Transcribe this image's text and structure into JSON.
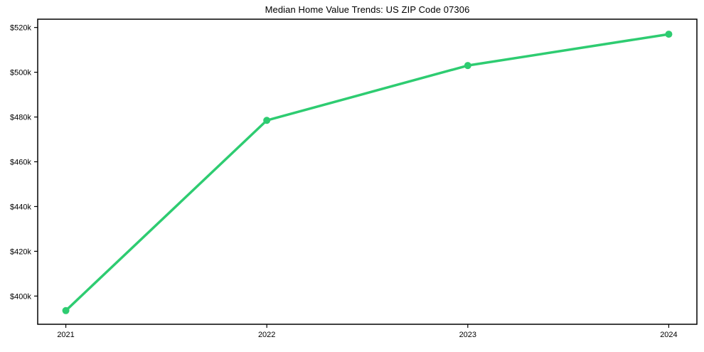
{
  "chart": {
    "background_color": "#ffffff",
    "line_color": "#2ecc71",
    "marker_color": "#2ecc71",
    "axis_color": "#000000",
    "text_color": "#000000"
  },
  "chart_data": {
    "type": "line",
    "title": "Median Home Value Trends: US ZIP Code 07306",
    "x": [
      2021,
      2022,
      2023,
      2024
    ],
    "x_tick_labels": [
      "2021",
      "2022",
      "2023",
      "2024"
    ],
    "values": [
      393500,
      478500,
      503000,
      517000
    ],
    "y_ticks": [
      400000,
      420000,
      440000,
      460000,
      480000,
      500000,
      520000
    ],
    "y_tick_labels": [
      "$400k",
      "$420k",
      "$440k",
      "$460k",
      "$480k",
      "$500k",
      "$520k"
    ],
    "xlim": [
      2020.86,
      2024.14
    ],
    "ylim": [
      387400,
      523700
    ],
    "xlabel": "",
    "ylabel": "",
    "grid": false,
    "legend_position": null
  }
}
